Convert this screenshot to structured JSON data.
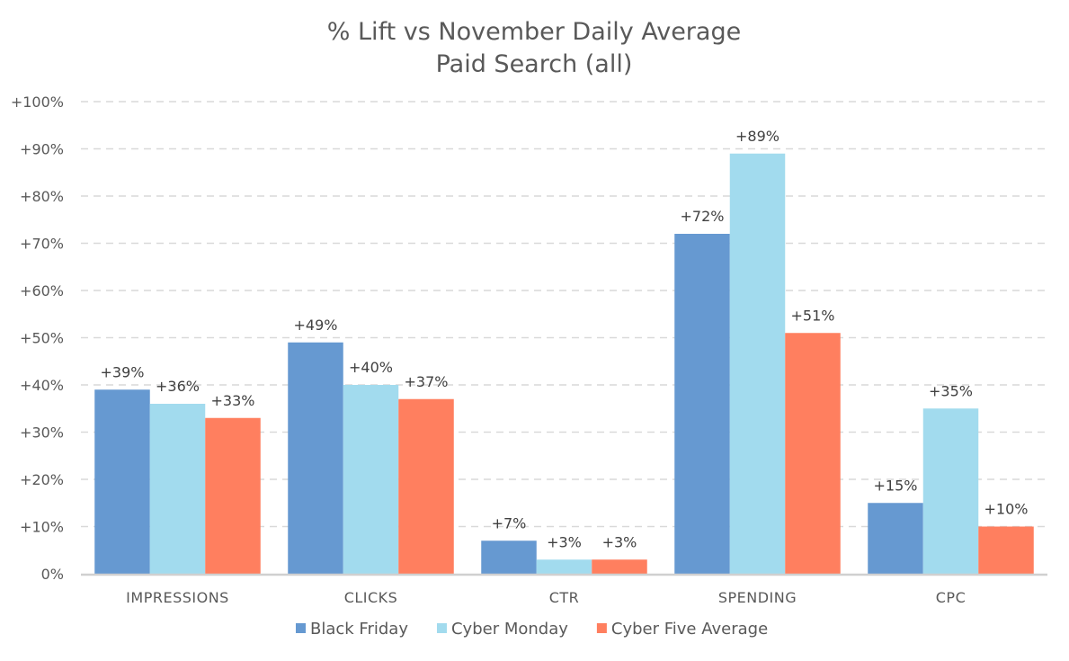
{
  "chart_data": {
    "type": "bar",
    "title": "% Lift vs November Daily Average",
    "subtitle": "Paid Search (all)",
    "categories": [
      "IMPRESSIONS",
      "CLICKS",
      "CTR",
      "SPENDING",
      "CPC"
    ],
    "series": [
      {
        "name": "Black Friday",
        "color": "#6699d1",
        "values": [
          39,
          49,
          7,
          72,
          15
        ],
        "labels": [
          "+39%",
          "+49%",
          "+7%",
          "+72%",
          "+15%"
        ]
      },
      {
        "name": "Cyber Monday",
        "color": "#a2dbee",
        "values": [
          36,
          40,
          3,
          89,
          35
        ],
        "labels": [
          "+36%",
          "+40%",
          "+3%",
          "+89%",
          "+35%"
        ]
      },
      {
        "name": "Cyber Five Average",
        "color": "#ff7f5f",
        "values": [
          33,
          37,
          3,
          51,
          10
        ],
        "labels": [
          "+33%",
          "+37%",
          "+3%",
          "+51%",
          "+10%"
        ]
      }
    ],
    "yticks": [
      "0%",
      "+10%",
      "+20%",
      "+30%",
      "+40%",
      "+50%",
      "+60%",
      "+70%",
      "+80%",
      "+90%",
      "+100%"
    ],
    "ylim": [
      0,
      100
    ],
    "grid": true,
    "legend_position": "bottom"
  }
}
